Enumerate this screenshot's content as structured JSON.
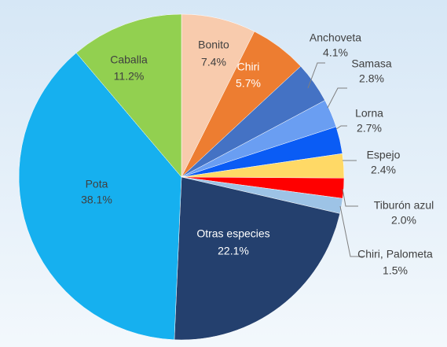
{
  "chart_data": {
    "type": "pie",
    "categories": [
      "Bonito",
      "Chiri",
      "Anchoveta",
      "Samasa",
      "Lorna",
      "Espejo",
      "Tiburón azul",
      "Chiri, Palometa",
      "Otras especies",
      "Pota",
      "Caballa"
    ],
    "values": [
      7.4,
      5.7,
      4.1,
      2.8,
      2.7,
      2.4,
      2.0,
      1.5,
      22.1,
      38.1,
      11.2
    ],
    "value_labels": [
      "7.4%",
      "5.7%",
      "4.1%",
      "2.8%",
      "2.7%",
      "2.4%",
      "2.0%",
      "1.5%",
      "22.1%",
      "38.1%",
      "11.2%"
    ],
    "colors": [
      "#f8cbad",
      "#ed7d31",
      "#4472c4",
      "#6a9ef2",
      "#0a5cf5",
      "#ffd966",
      "#ff0000",
      "#9dc3e6",
      "#24406e",
      "#16b0ef",
      "#92d050"
    ]
  }
}
